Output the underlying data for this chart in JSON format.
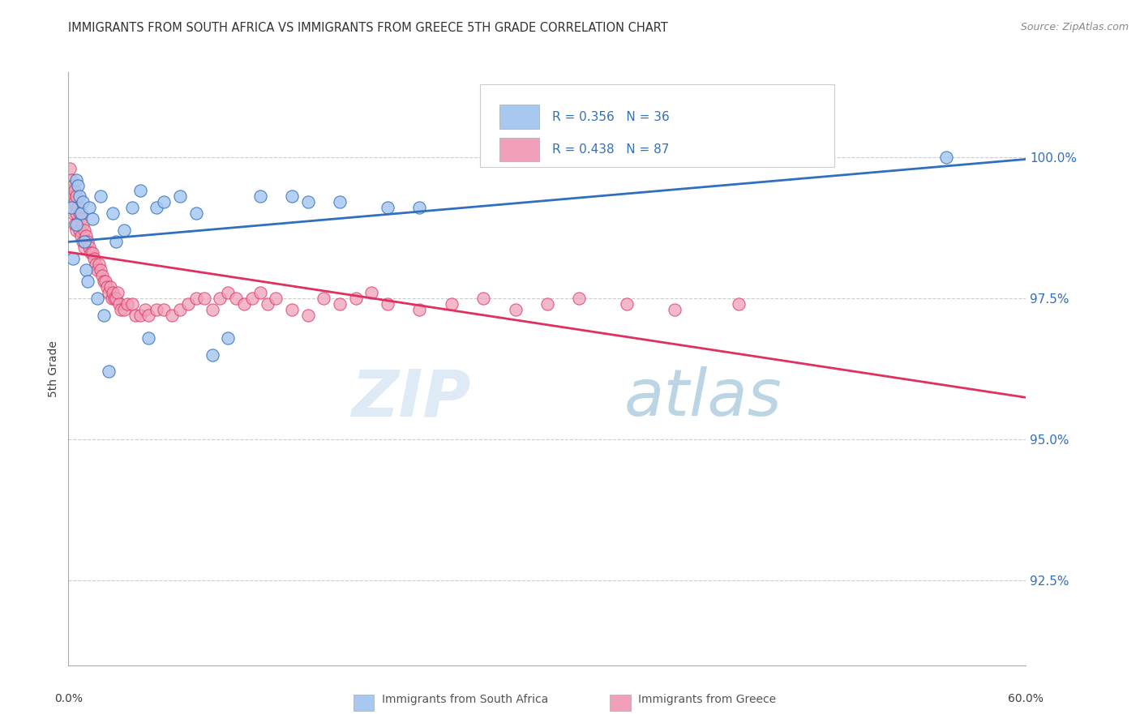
{
  "title": "IMMIGRANTS FROM SOUTH AFRICA VS IMMIGRANTS FROM GREECE 5TH GRADE CORRELATION CHART",
  "source": "Source: ZipAtlas.com",
  "ylabel": "5th Grade",
  "ylabel_ticks": [
    92.5,
    95.0,
    97.5,
    100.0
  ],
  "ylabel_tick_labels": [
    "92.5%",
    "95.0%",
    "97.5%",
    "100.0%"
  ],
  "xlim": [
    0.0,
    60.0
  ],
  "ylim": [
    91.0,
    101.5
  ],
  "watermark_zip": "ZIP",
  "watermark_atlas": "atlas",
  "legend_blue_label": "Immigrants from South Africa",
  "legend_pink_label": "Immigrants from Greece",
  "legend_R_blue": "R = 0.356",
  "legend_N_blue": "N = 36",
  "legend_R_pink": "R = 0.438",
  "legend_N_pink": "N = 87",
  "blue_color": "#a8c8f0",
  "pink_color": "#f0a0b8",
  "blue_line_color": "#3070c0",
  "pink_line_color": "#e03060",
  "south_africa_x": [
    0.2,
    0.3,
    0.5,
    0.5,
    0.6,
    0.7,
    0.8,
    0.9,
    1.0,
    1.1,
    1.2,
    1.3,
    1.5,
    1.8,
    2.0,
    2.2,
    2.5,
    2.8,
    3.0,
    3.5,
    4.0,
    4.5,
    5.0,
    5.5,
    6.0,
    7.0,
    8.0,
    9.0,
    10.0,
    12.0,
    14.0,
    15.0,
    17.0,
    20.0,
    22.0,
    55.0
  ],
  "south_africa_y": [
    99.1,
    98.2,
    99.6,
    98.8,
    99.5,
    99.3,
    99.0,
    99.2,
    98.5,
    98.0,
    97.8,
    99.1,
    98.9,
    97.5,
    99.3,
    97.2,
    96.2,
    99.0,
    98.5,
    98.7,
    99.1,
    99.4,
    96.8,
    99.1,
    99.2,
    99.3,
    99.0,
    96.5,
    96.8,
    99.3,
    99.3,
    99.2,
    99.2,
    99.1,
    99.1,
    100.0
  ],
  "greece_x": [
    0.1,
    0.1,
    0.1,
    0.2,
    0.2,
    0.2,
    0.3,
    0.3,
    0.3,
    0.4,
    0.4,
    0.4,
    0.5,
    0.5,
    0.5,
    0.6,
    0.6,
    0.7,
    0.7,
    0.8,
    0.8,
    0.9,
    0.9,
    1.0,
    1.0,
    1.1,
    1.2,
    1.3,
    1.4,
    1.5,
    1.6,
    1.7,
    1.8,
    1.9,
    2.0,
    2.1,
    2.2,
    2.3,
    2.4,
    2.5,
    2.6,
    2.7,
    2.8,
    2.9,
    3.0,
    3.1,
    3.2,
    3.3,
    3.5,
    3.7,
    4.0,
    4.2,
    4.5,
    4.8,
    5.0,
    5.5,
    6.0,
    6.5,
    7.0,
    7.5,
    8.0,
    8.5,
    9.0,
    9.5,
    10.0,
    10.5,
    11.0,
    11.5,
    12.0,
    12.5,
    13.0,
    14.0,
    15.0,
    16.0,
    17.0,
    18.0,
    19.0,
    20.0,
    22.0,
    24.0,
    26.0,
    28.0,
    30.0,
    32.0,
    35.0,
    38.0,
    42.0
  ],
  "greece_y": [
    99.8,
    99.5,
    99.3,
    99.6,
    99.4,
    99.2,
    99.5,
    99.3,
    99.0,
    99.4,
    99.2,
    98.8,
    99.3,
    99.0,
    98.7,
    99.1,
    98.8,
    99.0,
    98.7,
    98.9,
    98.6,
    98.8,
    98.5,
    98.7,
    98.4,
    98.6,
    98.5,
    98.4,
    98.3,
    98.3,
    98.2,
    98.1,
    98.0,
    98.1,
    98.0,
    97.9,
    97.8,
    97.8,
    97.7,
    97.6,
    97.7,
    97.5,
    97.6,
    97.5,
    97.5,
    97.6,
    97.4,
    97.3,
    97.3,
    97.4,
    97.4,
    97.2,
    97.2,
    97.3,
    97.2,
    97.3,
    97.3,
    97.2,
    97.3,
    97.4,
    97.5,
    97.5,
    97.3,
    97.5,
    97.6,
    97.5,
    97.4,
    97.5,
    97.6,
    97.4,
    97.5,
    97.3,
    97.2,
    97.5,
    97.4,
    97.5,
    97.6,
    97.4,
    97.3,
    97.4,
    97.5,
    97.3,
    97.4,
    97.5,
    97.4,
    97.3,
    97.4
  ]
}
